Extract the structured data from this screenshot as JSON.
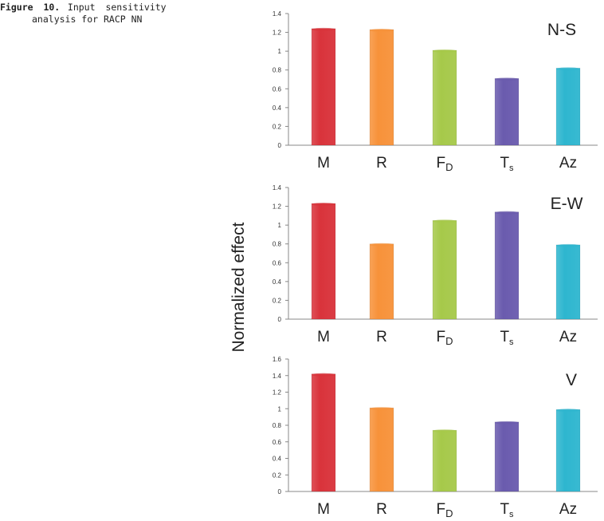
{
  "caption": {
    "label": "Figure 10.",
    "text_line1": "Input sensitivity",
    "text_line2": "analysis for RACP NN"
  },
  "y_axis_label": "Normalized effect",
  "categories": [
    {
      "base": "M",
      "sub": ""
    },
    {
      "base": "R",
      "sub": ""
    },
    {
      "base": "F",
      "sub": "D"
    },
    {
      "base": "T",
      "sub": "s"
    },
    {
      "base": "Az",
      "sub": ""
    }
  ],
  "colors": [
    "#d9333b",
    "#f7923a",
    "#a6c94a",
    "#6a5bae",
    "#2eb6cf"
  ],
  "chart_data": [
    {
      "type": "bar",
      "title": "N-S",
      "categories": [
        "M",
        "R",
        "FD",
        "Ts",
        "Az"
      ],
      "values": [
        1.24,
        1.23,
        1.01,
        0.71,
        0.82
      ],
      "ylim": [
        0,
        1.4
      ],
      "ticks": [
        0,
        0.2,
        0.4,
        0.6,
        0.8,
        1,
        1.2,
        1.4
      ],
      "tick_labels": [
        "0",
        "0.2",
        "0.4",
        "0.6",
        "0.8",
        "1",
        "1.2",
        "1.4"
      ],
      "ylabel": "Normalized effect",
      "grid": false
    },
    {
      "type": "bar",
      "title": "E-W",
      "categories": [
        "M",
        "R",
        "FD",
        "Ts",
        "Az"
      ],
      "values": [
        1.23,
        0.8,
        1.05,
        1.14,
        0.79
      ],
      "ylim": [
        0,
        1.4
      ],
      "ticks": [
        0,
        0.2,
        0.4,
        0.6,
        0.8,
        1,
        1.2,
        1.4
      ],
      "tick_labels": [
        "0",
        "0.2",
        "0.4",
        "0.6",
        "0.8",
        "1",
        "1.2",
        "1.4"
      ],
      "ylabel": "Normalized effect",
      "grid": false
    },
    {
      "type": "bar",
      "title": "V",
      "categories": [
        "M",
        "R",
        "FD",
        "Ts",
        "Az"
      ],
      "values": [
        1.42,
        1.01,
        0.74,
        0.84,
        0.99
      ],
      "ylim": [
        0,
        1.6
      ],
      "ticks": [
        0,
        0.2,
        0.4,
        0.6,
        0.8,
        1,
        1.2,
        1.4,
        1.6
      ],
      "tick_labels": [
        "0",
        "0.2",
        "0.4",
        "0.6",
        "0.8",
        "1",
        "1.2",
        "1.4",
        "1.6"
      ],
      "ylabel": "Normalized effect",
      "grid": false
    }
  ]
}
